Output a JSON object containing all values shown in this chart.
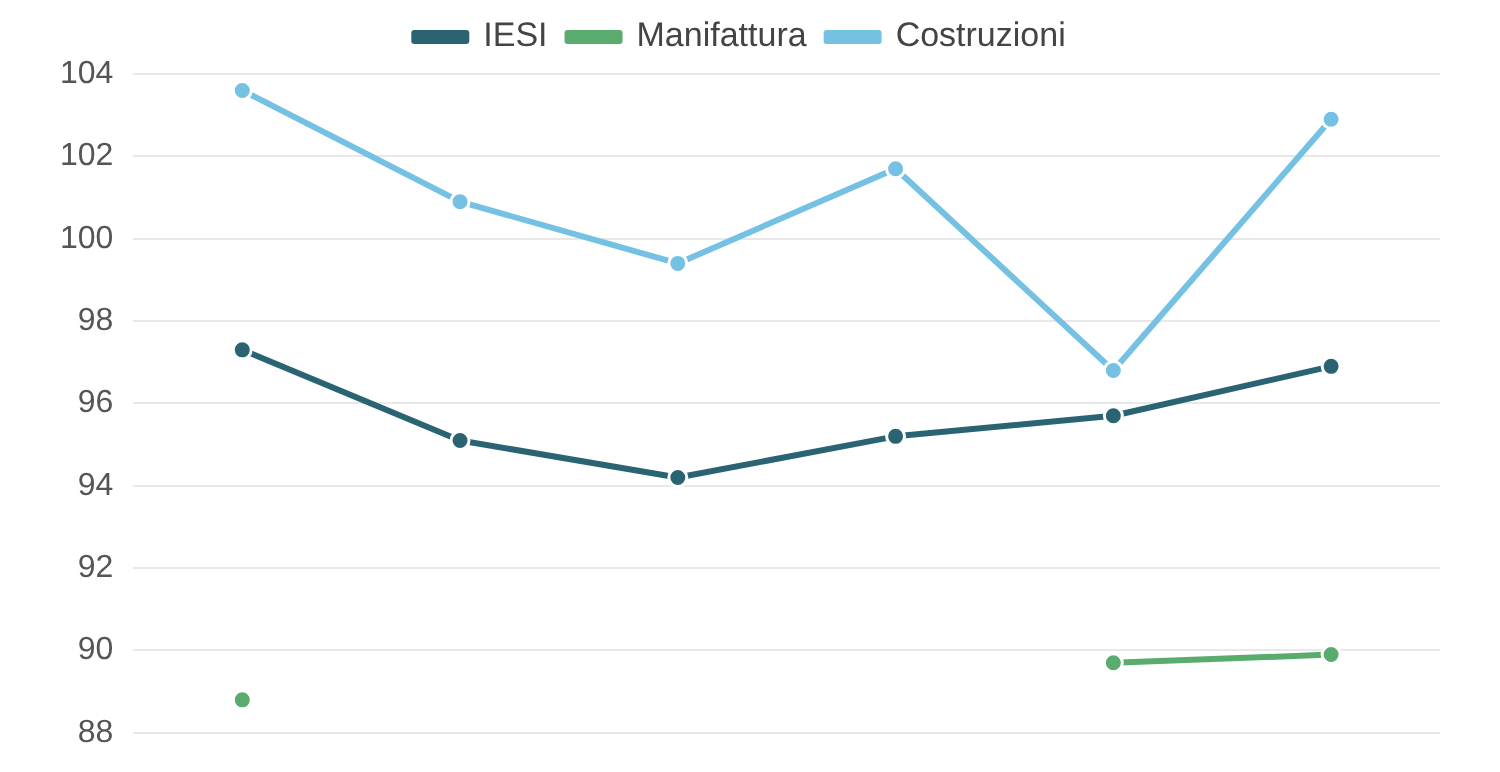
{
  "chart_data": {
    "type": "line",
    "categories": [
      null,
      null,
      null,
      null,
      null,
      null
    ],
    "series": [
      {
        "name": "IESI",
        "color": "#2a6472",
        "values": [
          97.3,
          95.1,
          94.2,
          95.2,
          95.7,
          96.9
        ]
      },
      {
        "name": "Manifattura",
        "color": "#5aab6e",
        "values": [
          88.8,
          null,
          null,
          null,
          89.7,
          89.9
        ]
      },
      {
        "name": "Costruzioni",
        "color": "#74c1e4",
        "values": [
          103.6,
          100.9,
          99.4,
          101.7,
          96.8,
          102.9
        ]
      }
    ],
    "ylim": [
      88,
      104
    ],
    "yticks": [
      88,
      90,
      92,
      94,
      96,
      98,
      100,
      102,
      104
    ],
    "grid": "y",
    "legend": "top",
    "marker": "circle",
    "line_style": "solid",
    "tick_labels": "y"
  }
}
